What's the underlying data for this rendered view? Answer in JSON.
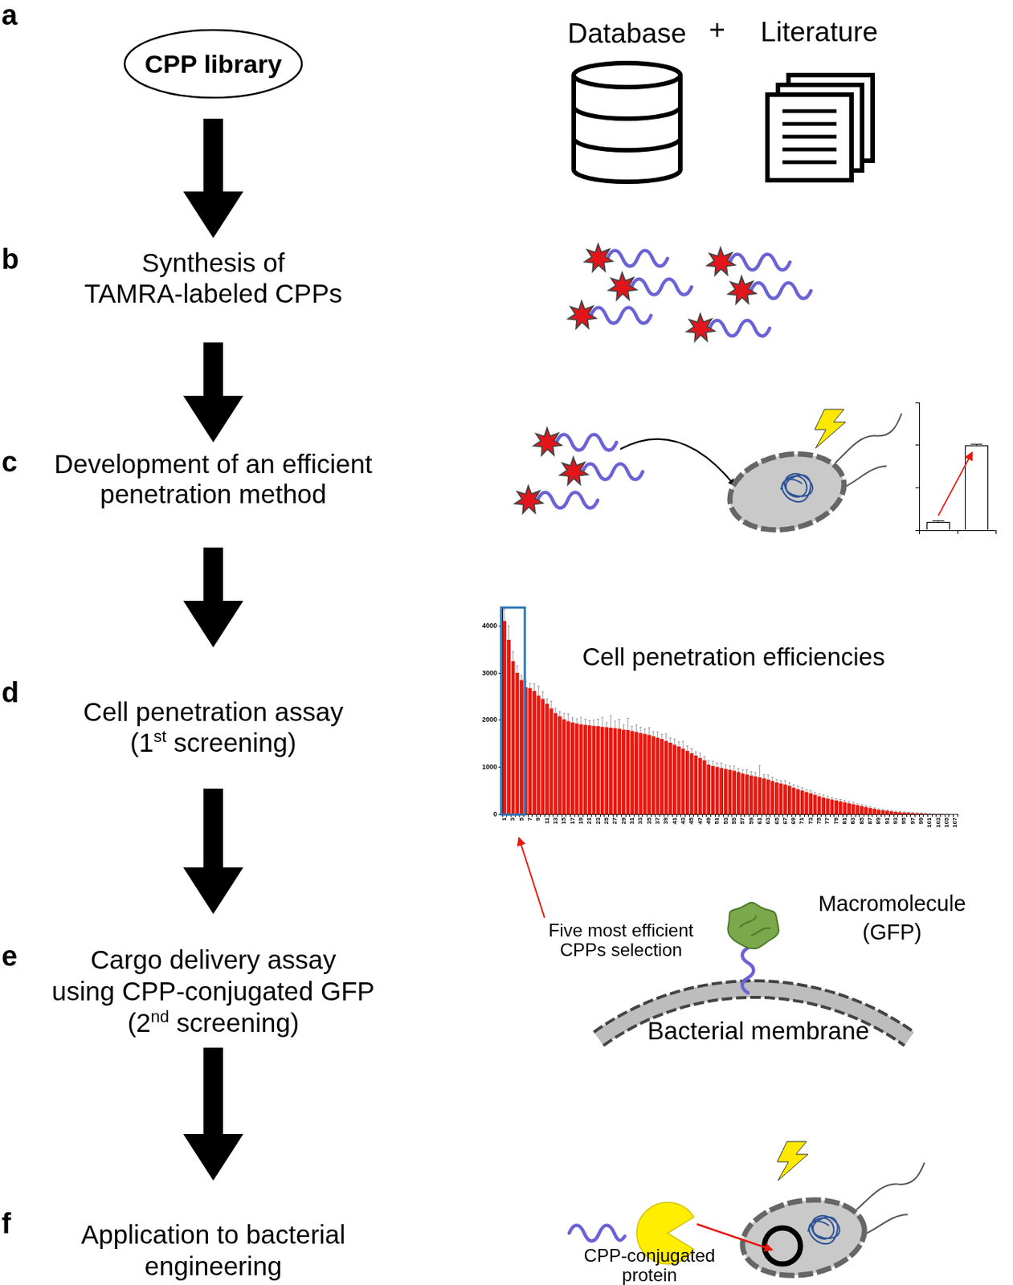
{
  "steps": [
    {
      "letter": "a",
      "lines": [
        [
          {
            "text": "CPP library"
          }
        ]
      ]
    },
    {
      "letter": "b",
      "lines": [
        [
          {
            "text": "Synthesis of"
          }
        ],
        [
          {
            "text": "TAMRA-labeled CPPs"
          }
        ]
      ]
    },
    {
      "letter": "c",
      "lines": [
        [
          {
            "text": "Development of an efficient"
          }
        ],
        [
          {
            "text": "penetration method"
          }
        ]
      ]
    },
    {
      "letter": "d",
      "lines": [
        [
          {
            "text": "Cell penetration assay"
          }
        ],
        [
          {
            "text": "(1"
          },
          {
            "text": "st",
            "sup": true
          },
          {
            "text": " screening)"
          }
        ]
      ]
    },
    {
      "letter": "e",
      "lines": [
        [
          {
            "text": "Cargo delivery assay"
          }
        ],
        [
          {
            "text": "using CPP-conjugated GFP"
          }
        ],
        [
          {
            "text": "(2"
          },
          {
            "text": "nd",
            "sup": true
          },
          {
            "text": " screening)"
          }
        ]
      ]
    },
    {
      "letter": "f",
      "lines": [
        [
          {
            "text": "Application to bacterial"
          }
        ],
        [
          {
            "text": "engineering"
          }
        ]
      ]
    }
  ],
  "sources": [
    "Database",
    "+",
    "Literature"
  ],
  "selection": {
    "count": 5,
    "lines": [
      "Five most efficient",
      "CPPs selection"
    ]
  },
  "cargo": {
    "lines": [
      "Macromolecule",
      "(GFP)"
    ],
    "membrane": "Bacterial membrane"
  },
  "application": {
    "lines": [
      "CPP-conjugated",
      "protein"
    ]
  },
  "chart_data": [
    {
      "type": "bar",
      "title": "Cell penetration efficiencies",
      "categories": [
        "1",
        null,
        "3",
        null,
        "5",
        null,
        "7",
        null,
        "9",
        null,
        "11",
        null,
        "13",
        null,
        "15",
        null,
        "17",
        null,
        "19",
        null,
        "21",
        null,
        "23",
        null,
        "25",
        null,
        "27",
        null,
        "29",
        null,
        "31",
        null,
        "33",
        null,
        "35",
        null,
        "37",
        null,
        "39",
        null,
        "41",
        null,
        "43",
        null,
        "45",
        null,
        "47",
        null,
        "49",
        null,
        "51",
        null,
        "53",
        null,
        "55",
        null,
        "57",
        null,
        "59",
        null,
        "61",
        null,
        "63",
        null,
        "65",
        null,
        "67",
        null,
        "69",
        null,
        "71",
        null,
        "73",
        null,
        "75",
        null,
        "77",
        null,
        "79",
        null,
        "81",
        null,
        "83",
        null,
        "85",
        null,
        "87",
        null,
        "89",
        null,
        "91",
        null,
        "93",
        null,
        "95",
        null,
        "97",
        null,
        "99",
        null,
        "101",
        null,
        "103",
        null,
        "105",
        null,
        "107"
      ],
      "values": [
        4100,
        3700,
        3250,
        3000,
        2850,
        2700,
        2680,
        2620,
        2520,
        2450,
        2350,
        2250,
        2150,
        2080,
        2020,
        1980,
        1950,
        1930,
        1910,
        1900,
        1890,
        1880,
        1870,
        1860,
        1850,
        1840,
        1830,
        1820,
        1800,
        1790,
        1770,
        1750,
        1730,
        1710,
        1690,
        1660,
        1630,
        1600,
        1560,
        1520,
        1480,
        1440,
        1400,
        1350,
        1300,
        1250,
        1200,
        1150,
        1060,
        1030,
        1010,
        990,
        970,
        950,
        930,
        900,
        870,
        850,
        830,
        810,
        790,
        770,
        740,
        710,
        680,
        660,
        640,
        610,
        570,
        540,
        510,
        480,
        450,
        420,
        390,
        360,
        340,
        320,
        300,
        280,
        260,
        240,
        220,
        200,
        180,
        160,
        140,
        120,
        100,
        90,
        80,
        70,
        60,
        50,
        45,
        40,
        35,
        30,
        25,
        20,
        15,
        12,
        10,
        8,
        6,
        4,
        2
      ],
      "errors": [
        250,
        300,
        200,
        150,
        100,
        120,
        100,
        150,
        200,
        150,
        100,
        150,
        100,
        100,
        120,
        150,
        100,
        100,
        150,
        120,
        100,
        120,
        150,
        200,
        100,
        250,
        150,
        200,
        100,
        250,
        100,
        150,
        120,
        100,
        150,
        100,
        120,
        100,
        150,
        100,
        120,
        100,
        150,
        100,
        100,
        80,
        100,
        80,
        80,
        100,
        80,
        100,
        80,
        80,
        100,
        80,
        80,
        100,
        80,
        80,
        250,
        80,
        100,
        80,
        60,
        60,
        80,
        60,
        60,
        60,
        60,
        50,
        60,
        50,
        50,
        60,
        50,
        50,
        40,
        40,
        40,
        40,
        40,
        30,
        30,
        30,
        30,
        20,
        20,
        20,
        20,
        20,
        15,
        15,
        15,
        10,
        10,
        10,
        10,
        10,
        5,
        5,
        5,
        5,
        5,
        5,
        5
      ],
      "color": "#e8180f",
      "ylim": [
        0,
        4400
      ],
      "yticks": [
        0,
        1000,
        2000,
        3000,
        4000
      ],
      "grid": false
    },
    {
      "type": "bar",
      "categories": [
        null,
        null
      ],
      "values": [
        0.2,
        2.0
      ],
      "errors": [
        0.02,
        0.02
      ],
      "color": "#ffffff",
      "ylim": [
        0,
        3
      ],
      "yticks": [
        0,
        1,
        2,
        3
      ],
      "tick_labels": false,
      "grid": false
    }
  ]
}
